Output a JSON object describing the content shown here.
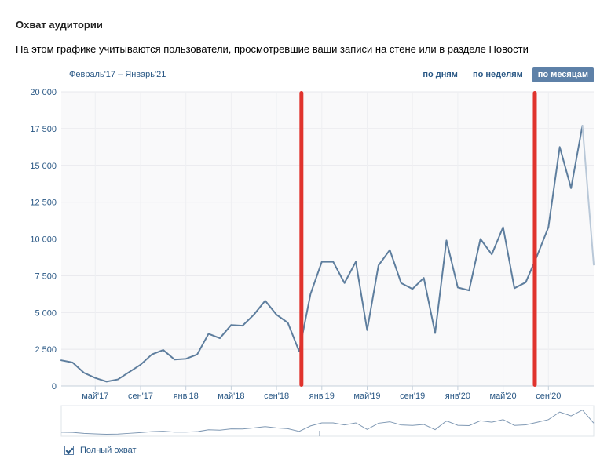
{
  "page": {
    "title": "Охват аудитории",
    "description": "На этом графике учитываются пользователи, просмотревшие ваши записи на стене или в разделе Новости",
    "range_label": "Февраль'17 – Январь'21"
  },
  "tabs": [
    {
      "label": "по дням",
      "active": false
    },
    {
      "label": "по неделям",
      "active": false
    },
    {
      "label": "по месяцам",
      "active": true
    }
  ],
  "legend": {
    "label": "Полный охват",
    "checked": true
  },
  "colors": {
    "line": "#5e7e9e",
    "marker": "#e0332d",
    "accent": "#5e81a8",
    "text": "#2a5885"
  },
  "chart_data": {
    "type": "line",
    "ylim": [
      0,
      20000
    ],
    "yticks": [
      "0",
      "2 500",
      "5 000",
      "7 500",
      "10 000",
      "12 500",
      "15 000",
      "17 500",
      "20 000"
    ],
    "xticks": [
      {
        "label": "май'17",
        "index": 3
      },
      {
        "label": "сен'17",
        "index": 7
      },
      {
        "label": "янв'18",
        "index": 11
      },
      {
        "label": "май'18",
        "index": 15
      },
      {
        "label": "сен'18",
        "index": 19
      },
      {
        "label": "янв'19",
        "index": 23
      },
      {
        "label": "май'19",
        "index": 27
      },
      {
        "label": "сен'19",
        "index": 31
      },
      {
        "label": "янв'20",
        "index": 35
      },
      {
        "label": "май'20",
        "index": 39
      },
      {
        "label": "сен'20",
        "index": 43
      }
    ],
    "series": [
      {
        "values": [
          1750,
          1600,
          900,
          550,
          300,
          450,
          950,
          1450,
          2150,
          2450,
          1800,
          1850,
          2150,
          3550,
          3250,
          4150,
          4100,
          4850,
          5800,
          4850,
          4300,
          2350,
          6250,
          8450,
          8450,
          7000,
          8450,
          3800,
          8200,
          9250,
          7000,
          6600,
          7350,
          3600,
          9900,
          6700,
          6500,
          10000,
          8950,
          10800,
          6650,
          7050,
          8850,
          10800,
          16250,
          13450,
          17700,
          8250
        ]
      }
    ],
    "markers": [
      {
        "index": 21.2
      },
      {
        "index": 41.8
      }
    ]
  }
}
